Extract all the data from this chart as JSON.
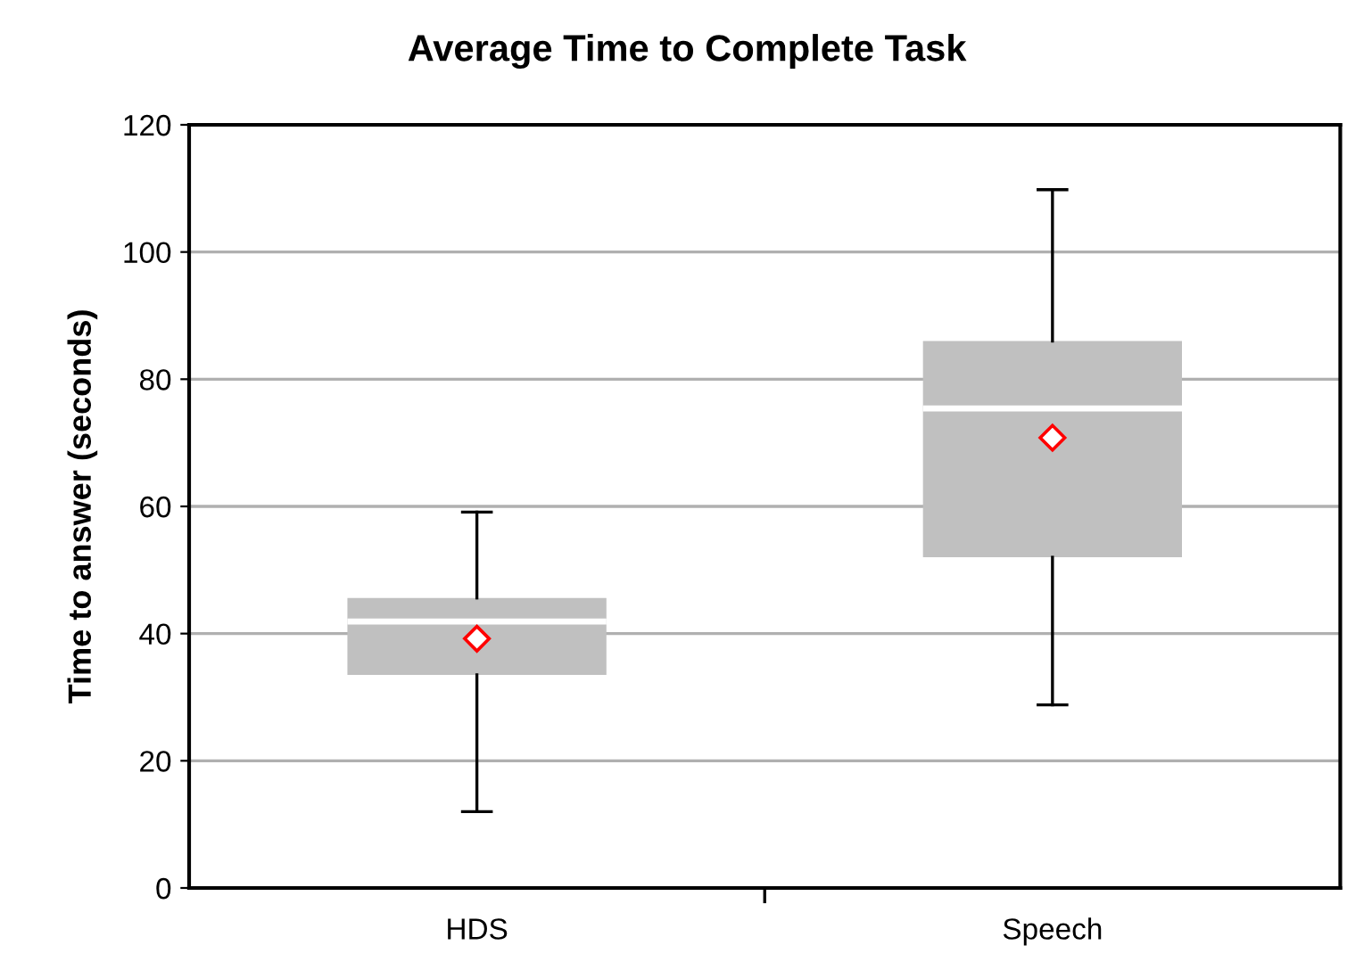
{
  "chart_data": {
    "type": "box",
    "title": "Average Time to Complete Task",
    "ylabel": "Time to answer (seconds)",
    "categories": [
      "HDS",
      "Speech"
    ],
    "boxes": [
      {
        "low": 12.0,
        "q1": 33.5,
        "median": 41.9,
        "q3": 45.6,
        "high": 59.1,
        "mean": 39.2
      },
      {
        "low": 28.8,
        "q1": 52.0,
        "median": 75.4,
        "q3": 86.0,
        "high": 109.8,
        "mean": 70.8
      }
    ],
    "color": "#c0c0c0",
    "ylim": [
      0,
      120
    ],
    "yticks": [
      0,
      20,
      40,
      60,
      80,
      100,
      120
    ],
    "grid": "y",
    "marker": "diamond"
  }
}
